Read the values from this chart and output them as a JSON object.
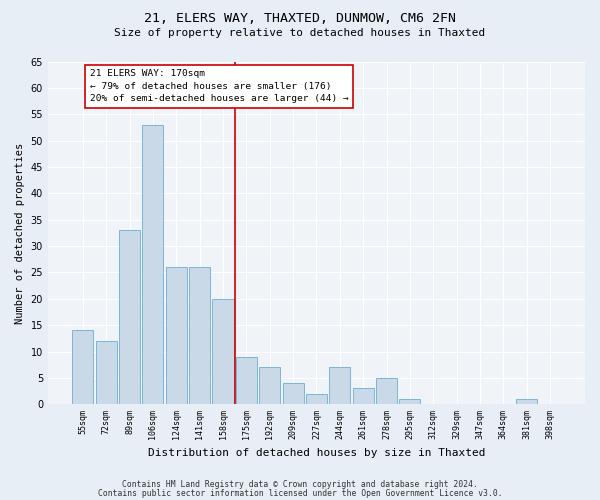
{
  "title1": "21, ELERS WAY, THAXTED, DUNMOW, CM6 2FN",
  "title2": "Size of property relative to detached houses in Thaxted",
  "xlabel": "Distribution of detached houses by size in Thaxted",
  "ylabel": "Number of detached properties",
  "bin_labels": [
    "55sqm",
    "72sqm",
    "89sqm",
    "106sqm",
    "124sqm",
    "141sqm",
    "158sqm",
    "175sqm",
    "192sqm",
    "209sqm",
    "227sqm",
    "244sqm",
    "261sqm",
    "278sqm",
    "295sqm",
    "312sqm",
    "329sqm",
    "347sqm",
    "364sqm",
    "381sqm",
    "398sqm"
  ],
  "bar_values": [
    14,
    12,
    33,
    53,
    26,
    26,
    20,
    9,
    7,
    4,
    2,
    7,
    3,
    5,
    1,
    0,
    0,
    0,
    0,
    1,
    0
  ],
  "bar_color": "#c9d9e8",
  "bar_edgecolor": "#6aaed6",
  "annotation_label": "21 ELERS WAY: 170sqm",
  "annotation_line1": "← 79% of detached houses are smaller (176)",
  "annotation_line2": "20% of semi-detached houses are larger (44) →",
  "vline_color": "#cc0000",
  "annotation_box_edgecolor": "#cc0000",
  "ylim": [
    0,
    65
  ],
  "yticks": [
    0,
    5,
    10,
    15,
    20,
    25,
    30,
    35,
    40,
    45,
    50,
    55,
    60,
    65
  ],
  "footer1": "Contains HM Land Registry data © Crown copyright and database right 2024.",
  "footer2": "Contains public sector information licensed under the Open Government Licence v3.0.",
  "bg_color": "#e8eef5",
  "plot_bg_color": "#f0f4f8"
}
